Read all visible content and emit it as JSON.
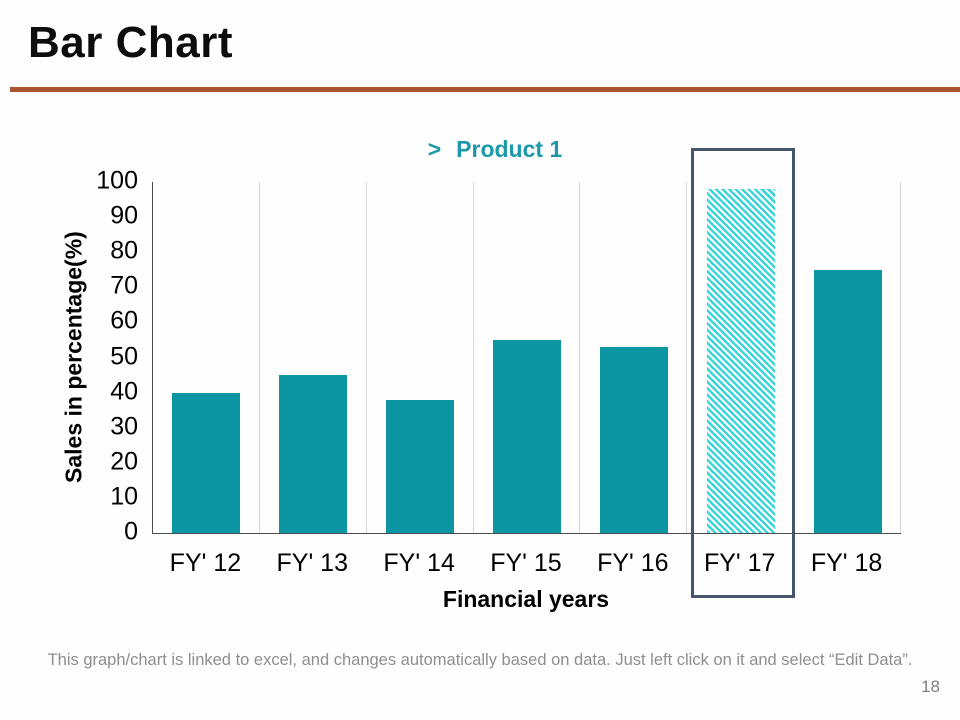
{
  "header": {
    "title": "Bar Chart"
  },
  "chart_data": {
    "type": "bar",
    "title": "Product 1",
    "legend_marker": ">",
    "legend_position": "top-center",
    "categories": [
      "FY' 12",
      "FY' 13",
      "FY' 14",
      "FY' 15",
      "FY' 16",
      "FY' 17",
      "FY' 18"
    ],
    "values": [
      40,
      45,
      38,
      55,
      53,
      98,
      75
    ],
    "xlabel": "Financial years",
    "ylabel": "Sales in percentage(%)",
    "ylim": [
      0,
      100
    ],
    "yticks": [
      0,
      10,
      20,
      30,
      40,
      50,
      60,
      70,
      80,
      90,
      100
    ],
    "highlight_category": "FY' 17",
    "highlight_style": "diagonal-hatch-with-outline-box",
    "gridlines": "vertical-category-boundaries"
  },
  "colors": {
    "bar": "#0c96a4",
    "hatch": "#3dd5db",
    "hatch_bg": "#ffffff",
    "highlight_box": "#44546a",
    "title_rule": "#ab5431",
    "legend_text": "#1b98a9",
    "axis": "#4d4d4d",
    "gridline": "#d9d9d9",
    "footer_text": "#8e8e8e"
  },
  "footer": {
    "note": "This graph/chart is linked to excel, and changes automatically based on data. Just left click on it and select “Edit Data”.",
    "page_number": "18"
  }
}
